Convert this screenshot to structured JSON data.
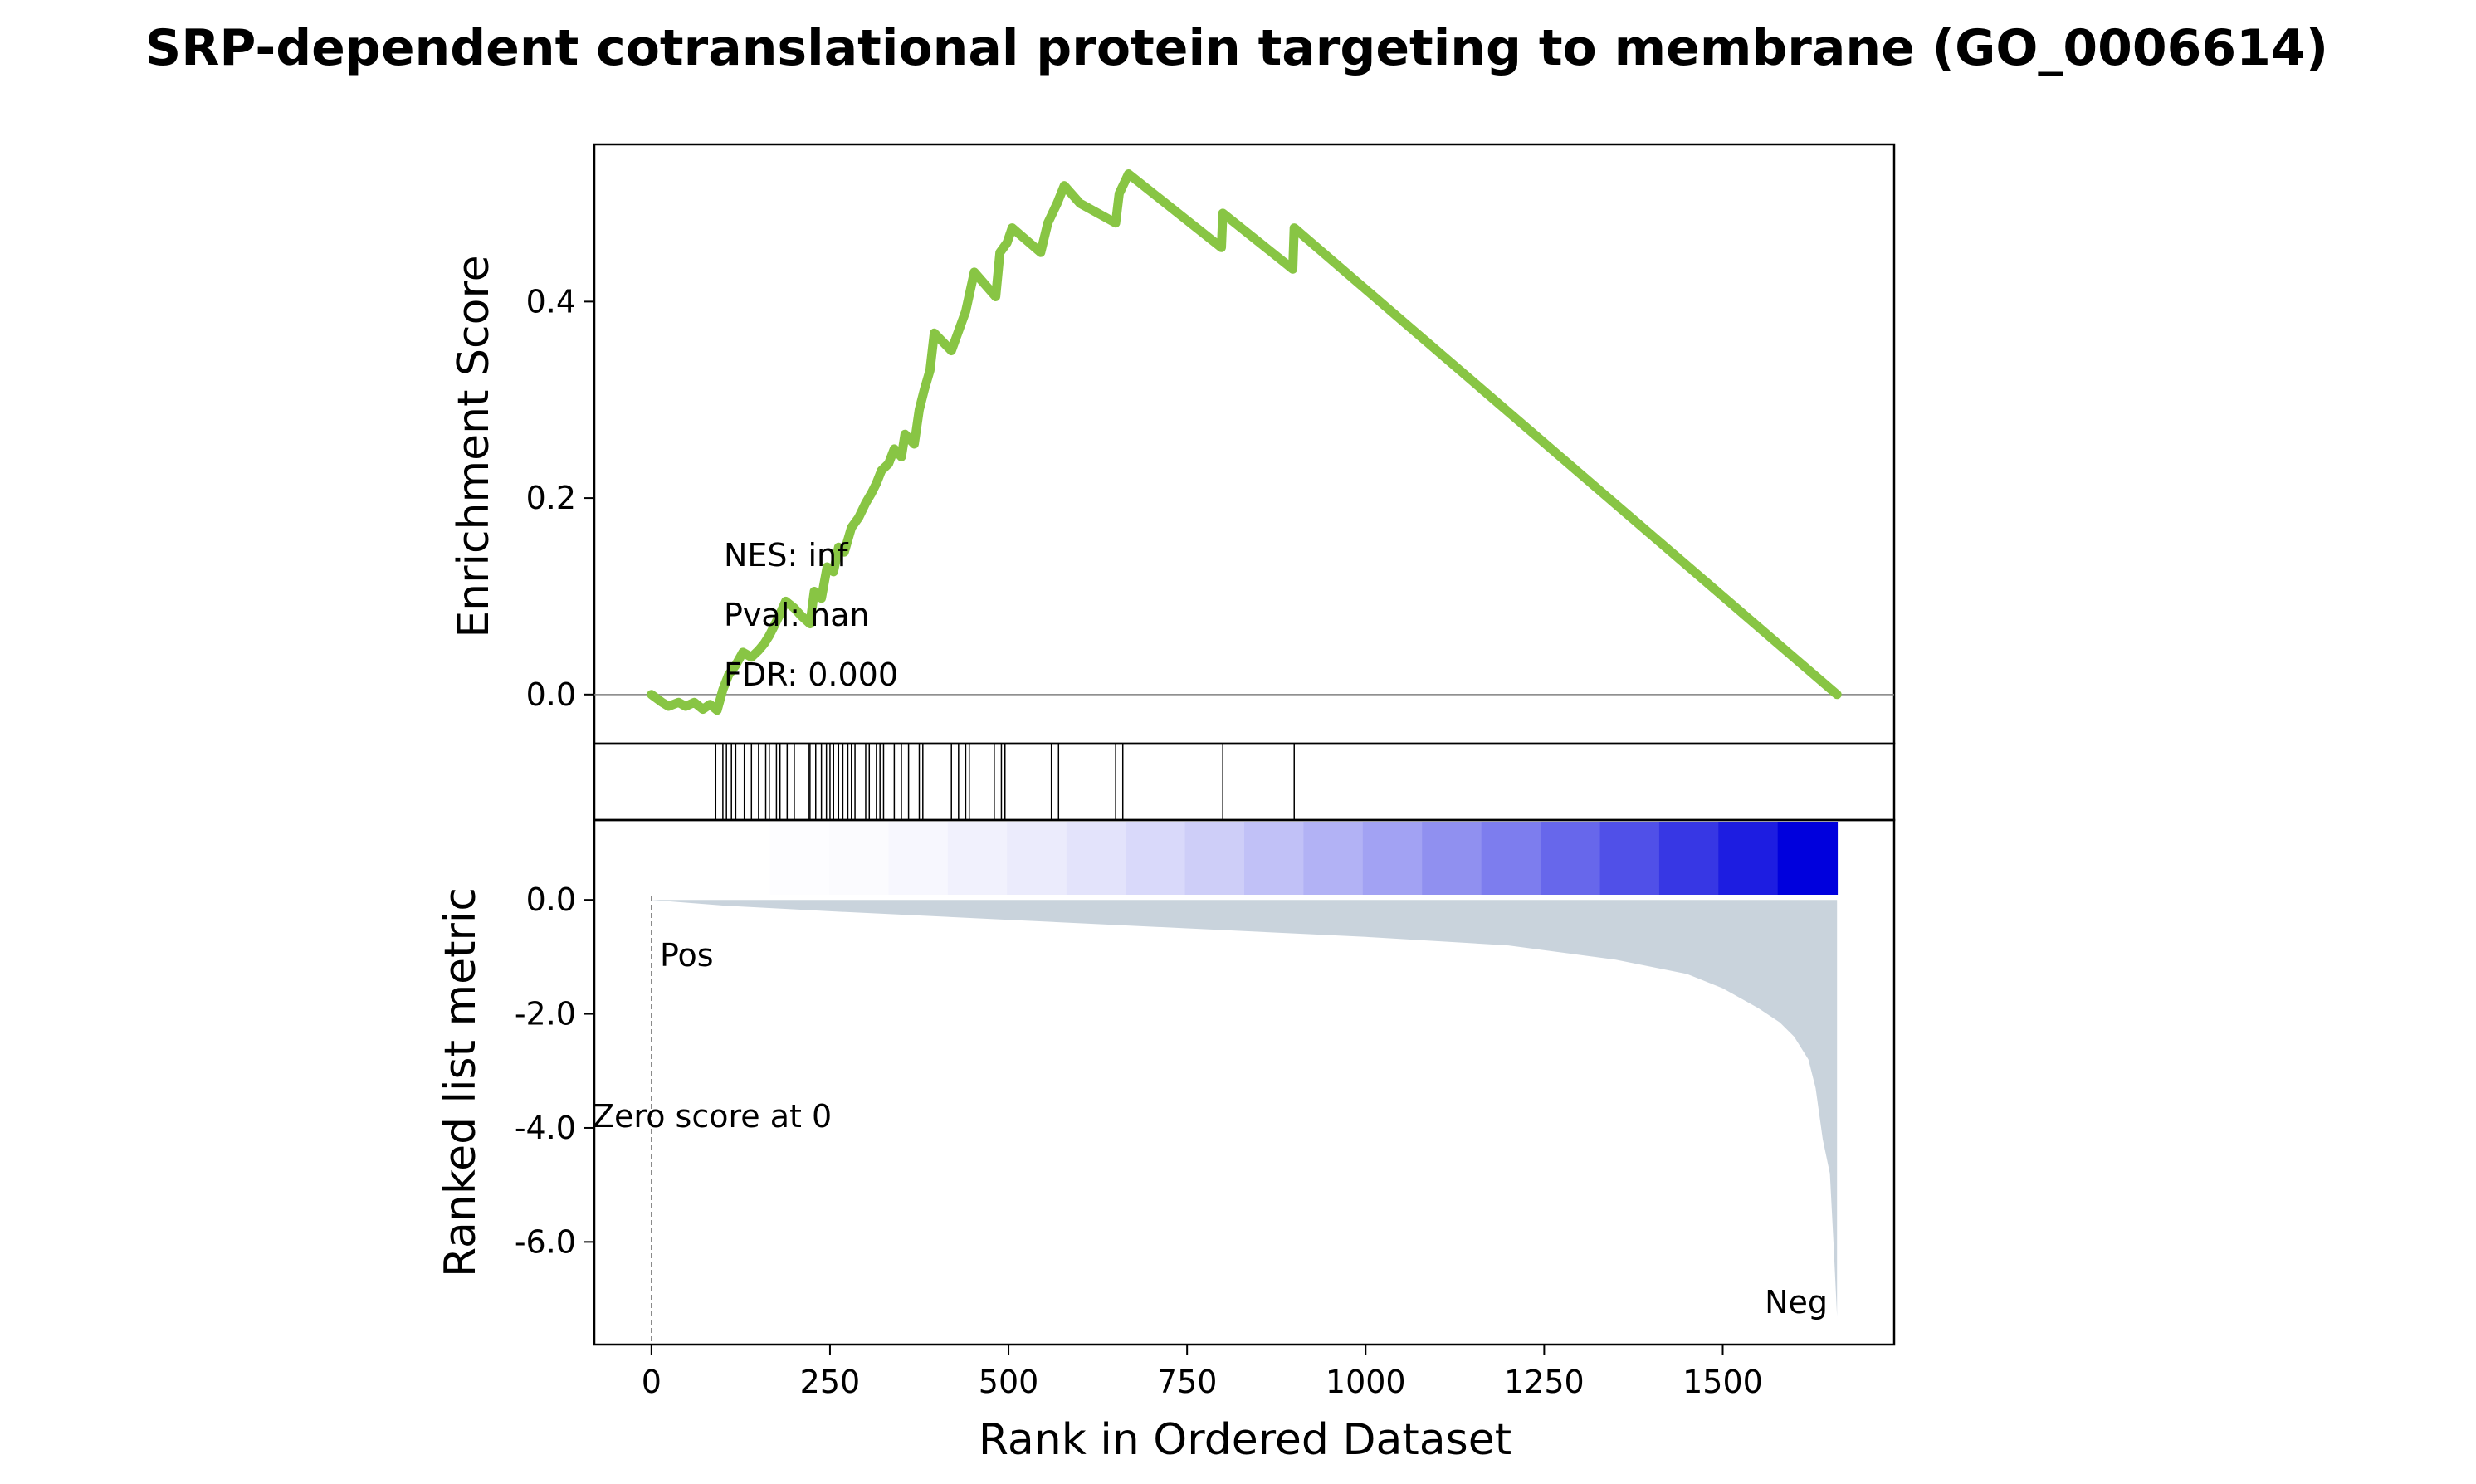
{
  "title": "SRP-dependent cotranslational protein targeting to membrane (GO_0006614)",
  "colors": {
    "es_line": "#88c544",
    "hit_line": "#000000",
    "metric_fill": "#c9d3dc",
    "pos_label": "#e3000b",
    "neg_label": "#0000e6",
    "heat_start": "#ffffff",
    "heat_end": "#0000dd"
  },
  "chart_data": [
    {
      "type": "line",
      "panel": "enrichment",
      "ylabel": "Enrichment Score",
      "ylim": [
        -0.05,
        0.56
      ],
      "yticks": [
        0.0,
        0.2,
        0.4
      ],
      "ytick_labels": [
        "0.0",
        "0.2",
        "0.4"
      ],
      "xlim": [
        -80,
        1740
      ],
      "zero_line": true,
      "series": [
        {
          "points": [
            [
              0,
              0.0
            ],
            [
              15,
              -0.008
            ],
            [
              24,
              -0.012
            ],
            [
              38,
              -0.008
            ],
            [
              48,
              -0.012
            ],
            [
              60,
              -0.008
            ],
            [
              72,
              -0.015
            ],
            [
              82,
              -0.01
            ],
            [
              92,
              -0.016
            ],
            [
              100,
              0.005
            ],
            [
              108,
              0.02
            ],
            [
              118,
              0.03
            ],
            [
              128,
              0.043
            ],
            [
              140,
              0.038
            ],
            [
              150,
              0.045
            ],
            [
              158,
              0.052
            ],
            [
              165,
              0.06
            ],
            [
              172,
              0.07
            ],
            [
              180,
              0.082
            ],
            [
              188,
              0.095
            ],
            [
              200,
              0.088
            ],
            [
              210,
              0.08
            ],
            [
              222,
              0.072
            ],
            [
              228,
              0.105
            ],
            [
              238,
              0.098
            ],
            [
              246,
              0.13
            ],
            [
              255,
              0.125
            ],
            [
              262,
              0.15
            ],
            [
              270,
              0.145
            ],
            [
              280,
              0.17
            ],
            [
              290,
              0.18
            ],
            [
              300,
              0.195
            ],
            [
              308,
              0.205
            ],
            [
              315,
              0.215
            ],
            [
              322,
              0.228
            ],
            [
              332,
              0.235
            ],
            [
              340,
              0.25
            ],
            [
              350,
              0.242
            ],
            [
              355,
              0.265
            ],
            [
              368,
              0.255
            ],
            [
              375,
              0.29
            ],
            [
              382,
              0.31
            ],
            [
              390,
              0.33
            ],
            [
              396,
              0.368
            ],
            [
              420,
              0.35
            ],
            [
              430,
              0.37
            ],
            [
              440,
              0.39
            ],
            [
              446,
              0.41
            ],
            [
              452,
              0.43
            ],
            [
              470,
              0.415
            ],
            [
              482,
              0.405
            ],
            [
              488,
              0.45
            ],
            [
              498,
              0.46
            ],
            [
              505,
              0.475
            ],
            [
              545,
              0.45
            ],
            [
              555,
              0.48
            ],
            [
              568,
              0.5
            ],
            [
              578,
              0.518
            ],
            [
              600,
              0.5
            ],
            [
              650,
              0.48
            ],
            [
              655,
              0.51
            ],
            [
              668,
              0.53
            ],
            [
              798,
              0.455
            ],
            [
              800,
              0.49
            ],
            [
              898,
              0.433
            ],
            [
              900,
              0.475
            ],
            [
              1660,
              0.0
            ]
          ]
        }
      ]
    },
    {
      "type": "hits",
      "panel": "gene-hits",
      "x": [
        90,
        100,
        105,
        112,
        118,
        130,
        140,
        150,
        160,
        165,
        175,
        180,
        190,
        200,
        220,
        222,
        230,
        238,
        245,
        250,
        255,
        262,
        268,
        275,
        280,
        285,
        300,
        305,
        315,
        320,
        325,
        340,
        350,
        360,
        375,
        380,
        420,
        430,
        440,
        445,
        480,
        490,
        495,
        560,
        570,
        650,
        660,
        800,
        900
      ]
    },
    {
      "type": "heatmap",
      "panel": "rank-heatmap",
      "x_range": [
        0,
        1660
      ],
      "note_levels": 20
    },
    {
      "type": "area",
      "panel": "ranked-metric",
      "ylabel": "Ranked list metric",
      "xlabel": "Rank in Ordered Dataset",
      "ylim": [
        -7.8,
        1.4
      ],
      "yticks": [
        0.0,
        -2.0,
        -4.0,
        -6.0
      ],
      "ytick_labels": [
        "0.0",
        "-2.0",
        "-4.0",
        "-6.0"
      ],
      "xlim": [
        -80,
        1740
      ],
      "xticks": [
        0,
        250,
        500,
        750,
        1000,
        1250,
        1500
      ],
      "xtick_labels": [
        "0",
        "250",
        "500",
        "750",
        "1000",
        "1250",
        "1500"
      ],
      "points": [
        [
          0,
          0.0
        ],
        [
          100,
          -0.1
        ],
        [
          250,
          -0.2
        ],
        [
          500,
          -0.35
        ],
        [
          750,
          -0.5
        ],
        [
          1000,
          -0.65
        ],
        [
          1200,
          -0.8
        ],
        [
          1350,
          -1.05
        ],
        [
          1450,
          -1.3
        ],
        [
          1500,
          -1.55
        ],
        [
          1550,
          -1.9
        ],
        [
          1580,
          -2.15
        ],
        [
          1600,
          -2.4
        ],
        [
          1620,
          -2.8
        ],
        [
          1630,
          -3.3
        ],
        [
          1640,
          -4.2
        ],
        [
          1650,
          -4.8
        ],
        [
          1655,
          -6.0
        ],
        [
          1660,
          -7.3
        ]
      ],
      "pos_label": "Pos",
      "neg_label": "Neg",
      "zero_score_label": "Zero score at 0"
    }
  ],
  "stats": {
    "nes": "NES: inf",
    "pval": "Pval: nan",
    "fdr": "FDR: 0.000"
  }
}
